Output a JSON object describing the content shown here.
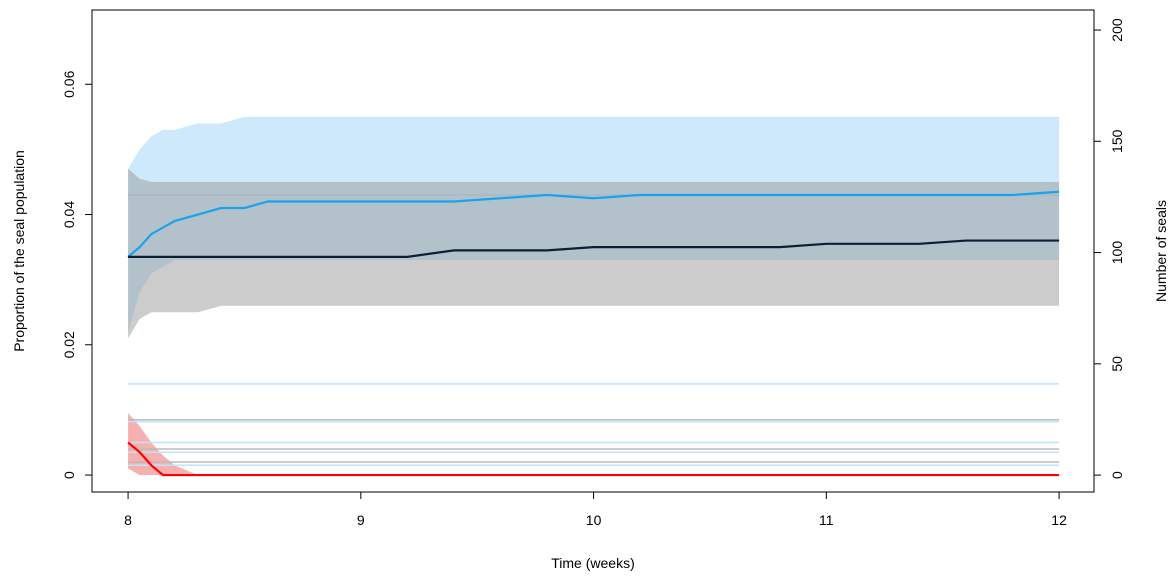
{
  "chart_data": {
    "type": "line",
    "x_label": "Time (weeks)",
    "y_label": "Proportion of the seal population",
    "y2_label": "Number of seals",
    "x": [
      8,
      8.05,
      8.1,
      8.15,
      8.2,
      8.3,
      8.4,
      8.5,
      8.6,
      8.8,
      9,
      9.2,
      9.4,
      9.6,
      9.8,
      10,
      10.2,
      10.4,
      10.6,
      10.8,
      11,
      11.2,
      11.4,
      11.6,
      11.8,
      12
    ],
    "xlim": [
      7.845,
      12.15
    ],
    "xticks": [
      8,
      9,
      10,
      11,
      12
    ],
    "ylim": [
      -0.0026,
      0.0714
    ],
    "yticks": [
      0,
      0.02,
      0.04,
      0.06
    ],
    "y2lim": [
      -7.6,
      209
    ],
    "y2ticks": [
      0,
      50,
      100,
      150,
      200
    ],
    "bands": [
      {
        "color": "#cde9fb",
        "lower": [
          0.022,
          0.028,
          0.031,
          0.032,
          0.033,
          0.033,
          0.033,
          0.033,
          0.033,
          0.033,
          0.033,
          0.033,
          0.033,
          0.033,
          0.033,
          0.033,
          0.033,
          0.033,
          0.033,
          0.033,
          0.033,
          0.033,
          0.033,
          0.033,
          0.033,
          0.033
        ],
        "upper": [
          0.047,
          0.05,
          0.052,
          0.053,
          0.053,
          0.054,
          0.054,
          0.055,
          0.055,
          0.055,
          0.055,
          0.055,
          0.055,
          0.055,
          0.055,
          0.055,
          0.055,
          0.055,
          0.055,
          0.055,
          0.055,
          0.055,
          0.055,
          0.055,
          0.055,
          0.055
        ]
      },
      {
        "color": "#9a9a9a",
        "lower": [
          0.021,
          0.024,
          0.025,
          0.025,
          0.025,
          0.025,
          0.026,
          0.026,
          0.026,
          0.026,
          0.026,
          0.026,
          0.026,
          0.026,
          0.026,
          0.026,
          0.026,
          0.026,
          0.026,
          0.026,
          0.026,
          0.026,
          0.026,
          0.026,
          0.026,
          0.026
        ],
        "upper": [
          0.047,
          0.0455,
          0.045,
          0.045,
          0.045,
          0.045,
          0.045,
          0.045,
          0.045,
          0.045,
          0.045,
          0.045,
          0.045,
          0.045,
          0.045,
          0.045,
          0.045,
          0.045,
          0.045,
          0.045,
          0.045,
          0.045,
          0.045,
          0.045,
          0.045,
          0.045
        ]
      },
      {
        "color": "#f7b0b0",
        "lower": [
          0.001,
          0,
          0,
          0,
          0,
          0,
          0,
          0,
          0,
          0,
          0,
          0,
          0,
          0,
          0,
          0,
          0,
          0,
          0,
          0,
          0,
          0,
          0,
          0,
          0,
          0
        ],
        "upper": [
          0.0095,
          0.0075,
          0.005,
          0.003,
          0.0015,
          0,
          0,
          0,
          0,
          0,
          0,
          0,
          0,
          0,
          0,
          0,
          0,
          0,
          0,
          0,
          0,
          0,
          0,
          0,
          0,
          0
        ]
      }
    ],
    "reference_lines": [
      {
        "color": "#a8b8c4",
        "value": 0.043
      },
      {
        "color": "#bfe3f7",
        "value": 0.014
      },
      {
        "color": "#bbbbbb",
        "value": 0.0085
      },
      {
        "color": "#bfe3f7",
        "value": 0.0082
      },
      {
        "color": "#bfe3f7",
        "value": 0.005
      },
      {
        "color": "#bbbbbb",
        "value": 0.004
      },
      {
        "color": "#bfe3f7",
        "value": 0.0035
      },
      {
        "color": "#bbbbbb",
        "value": 0.002
      },
      {
        "color": "#bfe3f7",
        "value": 0.0015
      }
    ],
    "series": [
      {
        "color": "#1aa3ec",
        "values": [
          0.0335,
          0.035,
          0.037,
          0.038,
          0.039,
          0.04,
          0.041,
          0.041,
          0.042,
          0.042,
          0.042,
          0.042,
          0.042,
          0.0425,
          0.043,
          0.0425,
          0.043,
          0.043,
          0.043,
          0.043,
          0.043,
          0.043,
          0.043,
          0.043,
          0.043,
          0.0435
        ]
      },
      {
        "color": "#0d1f33",
        "values": [
          0.0335,
          0.0335,
          0.0335,
          0.0335,
          0.0335,
          0.0335,
          0.0335,
          0.0335,
          0.0335,
          0.0335,
          0.0335,
          0.0335,
          0.0345,
          0.0345,
          0.0345,
          0.035,
          0.035,
          0.035,
          0.035,
          0.035,
          0.0355,
          0.0355,
          0.0355,
          0.036,
          0.036,
          0.036
        ]
      },
      {
        "color": "#ff0000",
        "values": [
          0.005,
          0.0035,
          0.0015,
          0,
          0,
          0,
          0,
          0,
          0,
          0,
          0,
          0,
          0,
          0,
          0,
          0,
          0,
          0,
          0,
          0,
          0,
          0,
          0,
          0,
          0,
          0
        ]
      }
    ]
  }
}
